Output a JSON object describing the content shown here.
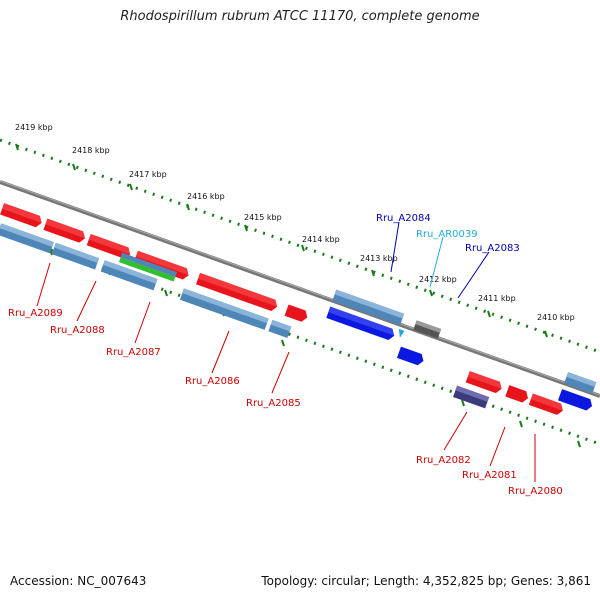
{
  "title": "Rhodospirillum rubrum ATCC 11170, complete genome",
  "footer": {
    "accession": "Accession: NC_007643",
    "summary": "Topology: circular; Length: 4,352,825 bp; Genes: 3,861"
  },
  "colors": {
    "forward_gene": "#e8141c",
    "cds": "#4f86b8",
    "rrna_trna": "#0a18e0",
    "gray_feature": "#555555",
    "green_feature": "#2fbf2f",
    "navy_feature": "#3b3a7a",
    "backbone": "#777777",
    "ticks": "#1a7a1a",
    "label_red": "#cc0000",
    "label_blue": "#0000aa",
    "label_cyan": "#22aadd"
  },
  "scale_labels": [
    "2419 kbp",
    "2418 kbp",
    "2417 kbp",
    "2416 kbp",
    "2415 kbp",
    "2414 kbp",
    "2413 kbp",
    "2412 kbp",
    "2411 kbp",
    "2410 kbp"
  ],
  "gene_labels": {
    "top": [
      {
        "name": "Rru_A2084",
        "color": "blue"
      },
      {
        "name": "Rru_AR0039",
        "color": "cyan"
      },
      {
        "name": "Rru_A2083",
        "color": "blue"
      }
    ],
    "bottom": [
      {
        "name": "Rru_A2089",
        "color": "red"
      },
      {
        "name": "Rru_A2088",
        "color": "red"
      },
      {
        "name": "Rru_A2087",
        "color": "red"
      },
      {
        "name": "Rru_A2086",
        "color": "red"
      },
      {
        "name": "Rru_A2085",
        "color": "red"
      },
      {
        "name": "Rru_A2082",
        "color": "red"
      },
      {
        "name": "Rru_A2081",
        "color": "red"
      },
      {
        "name": "Rru_A2080",
        "color": "red"
      }
    ]
  }
}
